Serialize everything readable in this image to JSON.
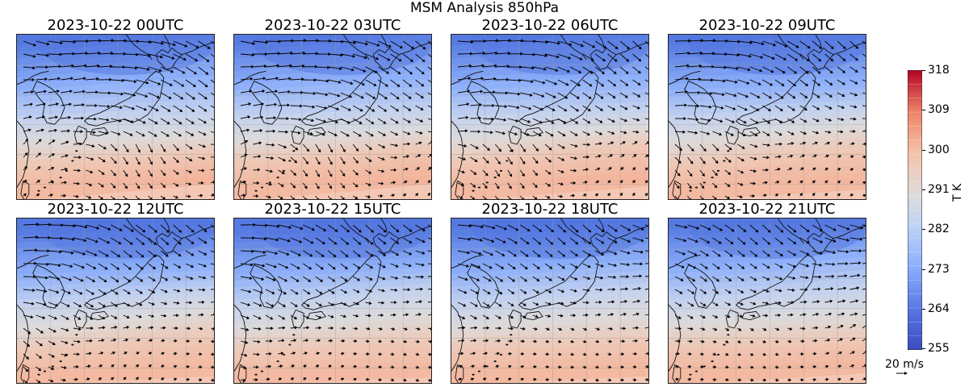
{
  "figure": {
    "title": "MSM Analysis 850hPa"
  },
  "panels": [
    {
      "title": "2023-10-22 00UTC",
      "variant": 0
    },
    {
      "title": "2023-10-22 03UTC",
      "variant": 1
    },
    {
      "title": "2023-10-22 06UTC",
      "variant": 2
    },
    {
      "title": "2023-10-22 09UTC",
      "variant": 3
    },
    {
      "title": "2023-10-22 12UTC",
      "variant": 4
    },
    {
      "title": "2023-10-22 15UTC",
      "variant": 5
    },
    {
      "title": "2023-10-22 18UTC",
      "variant": 6
    },
    {
      "title": "2023-10-22 21UTC",
      "variant": 7
    }
  ],
  "colorbar": {
    "label": "T K",
    "ticks": [
      "318",
      "309",
      "300",
      "291",
      "282",
      "273",
      "264",
      "255"
    ],
    "colors": [
      "#3b4cc0",
      "#5a78e4",
      "#7b9ff9",
      "#9ebeff",
      "#c0d4f5",
      "#dddcdc",
      "#f2cbb7",
      "#f7a889",
      "#ee8468",
      "#d65244",
      "#b40426"
    ]
  },
  "quiver_key": {
    "label": "20 m/s"
  }
}
